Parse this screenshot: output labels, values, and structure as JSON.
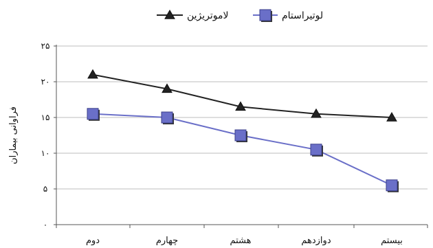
{
  "chart_data": {
    "type": "line",
    "title": "",
    "ylabel": "فراوانی بیماران",
    "xlabel": "",
    "categories": [
      "دوم",
      "چهارم",
      "هشتم",
      "دوازدهم",
      "بیستم"
    ],
    "y_ticks": [
      "۰",
      "۵",
      "۱۰",
      "۱۵",
      "۲۰",
      "۲۵"
    ],
    "ylim": [
      0,
      25
    ],
    "grid": true,
    "legend_position": "top",
    "series": [
      {
        "name": "لاموتریژین",
        "values": [
          21,
          19,
          16.5,
          15.5,
          15
        ],
        "color": "#222222",
        "marker": "triangle"
      },
      {
        "name": "لوتیراستام",
        "values": [
          15.5,
          15,
          12.5,
          10.5,
          5.5
        ],
        "color": "#6a6fc8",
        "marker": "square"
      }
    ]
  }
}
